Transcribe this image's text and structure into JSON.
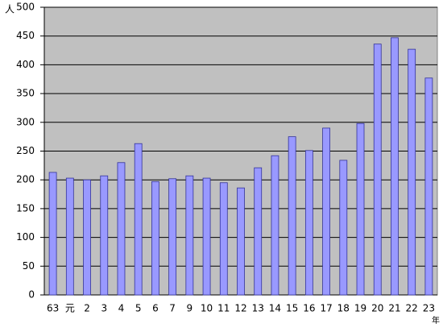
{
  "chart_data": {
    "type": "bar",
    "y_label": "人",
    "x_label": "年",
    "categories": [
      "63",
      "元",
      "2",
      "3",
      "4",
      "5",
      "6",
      "7",
      "9",
      "10",
      "11",
      "12",
      "13",
      "14",
      "15",
      "16",
      "17",
      "18",
      "19",
      "20",
      "21",
      "22",
      "23"
    ],
    "values": [
      213,
      203,
      200,
      207,
      230,
      263,
      197,
      202,
      207,
      203,
      195,
      186,
      221,
      242,
      275,
      251,
      290,
      234,
      298,
      436,
      447,
      427,
      377
    ],
    "color": "#9999ff",
    "ylim": [
      0,
      500
    ],
    "yticks": [
      0,
      50,
      100,
      150,
      200,
      250,
      300,
      350,
      400,
      450,
      500
    ],
    "grid": true
  }
}
